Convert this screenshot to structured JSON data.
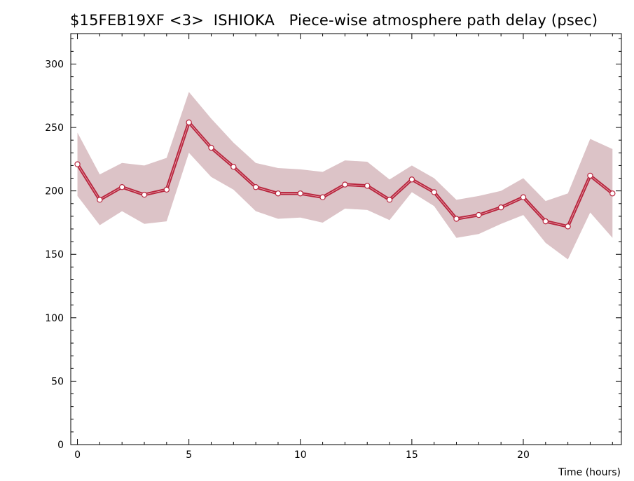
{
  "chart_data": {
    "type": "line",
    "title": "$15FEB19XF <3>  ISHIOKA   Piece-wise atmosphere path delay (psec)",
    "xlabel": "Time (hours)",
    "ylabel": "",
    "xlim": [
      -0.3,
      24.4
    ],
    "ylim": [
      0,
      324
    ],
    "x_ticks": [
      0,
      5,
      10,
      15,
      20
    ],
    "y_ticks": [
      0,
      50,
      100,
      150,
      200,
      250,
      300
    ],
    "grid": false,
    "series": [
      {
        "x": [
          0,
          1,
          2,
          3,
          4,
          5,
          6,
          7,
          8,
          9,
          10,
          11,
          12,
          13,
          14,
          15,
          16,
          17,
          18,
          19,
          20,
          21,
          22,
          23,
          24
        ],
        "values": [
          221,
          193,
          203,
          197,
          201,
          254,
          234,
          219,
          203,
          198,
          198,
          195,
          205,
          204,
          193,
          209,
          199,
          178,
          181,
          187,
          195,
          176,
          172,
          212,
          198
        ],
        "lower": [
          196,
          173,
          184,
          174,
          176,
          230,
          211,
          201,
          184,
          178,
          179,
          175,
          186,
          185,
          177,
          199,
          188,
          163,
          166,
          174,
          181,
          159,
          146,
          183,
          163
        ],
        "upper": [
          246,
          213,
          222,
          220,
          226,
          278,
          257,
          238,
          222,
          218,
          217,
          215,
          224,
          223,
          209,
          220,
          210,
          193,
          196,
          200,
          210,
          192,
          198,
          241,
          233
        ]
      }
    ],
    "colors": {
      "line": "#b8263e",
      "band": "#dcc3c7",
      "marker_fill": "#ffffff"
    }
  }
}
